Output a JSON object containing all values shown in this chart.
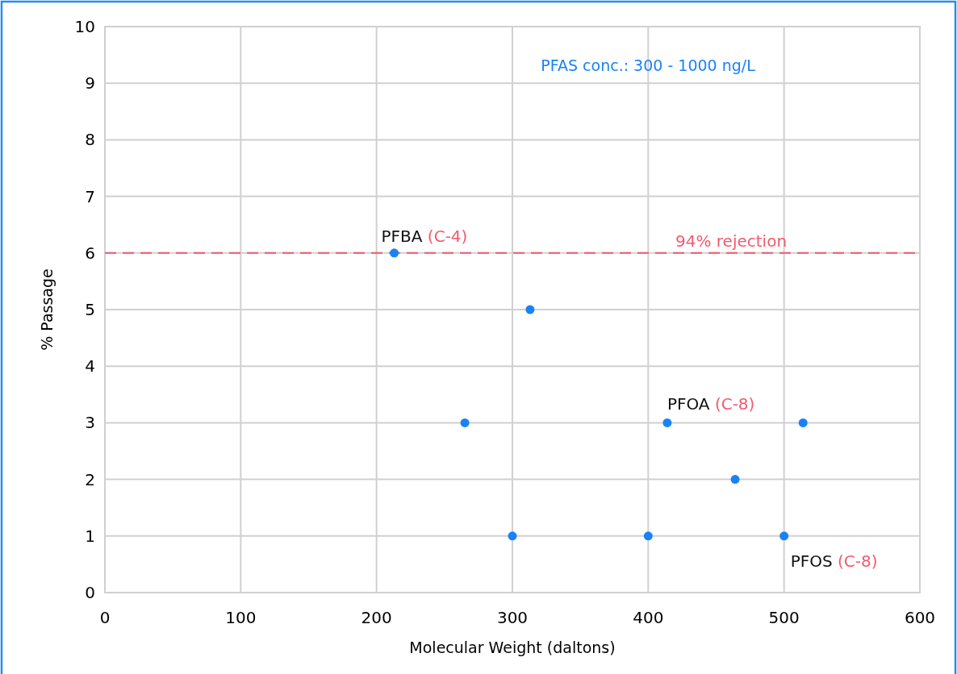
{
  "chart_data": {
    "type": "scatter",
    "xlabel": "Molecular Weight (daltons)",
    "ylabel": "% Passage",
    "x": [
      213,
      313,
      265,
      300,
      400,
      414,
      464,
      500,
      514
    ],
    "values": [
      6,
      5,
      3,
      1,
      1,
      3,
      2,
      1,
      3
    ],
    "color": "#1a82f7",
    "marker": "circle",
    "xlim": [
      0,
      600
    ],
    "xticks": [
      0,
      100,
      200,
      300,
      400,
      500,
      600
    ],
    "ylim": [
      0,
      10
    ],
    "yticks": [
      0,
      1,
      2,
      3,
      4,
      5,
      6,
      7,
      8,
      9,
      10
    ],
    "grid": true,
    "ref_lines": [
      {
        "axis": "y",
        "value": 6,
        "label": "94% rejection",
        "color": "#f25a6e",
        "line_style": "dashed"
      }
    ],
    "annotations": [
      "PFAS conc.: 300 - 1000 ng/L",
      {
        "text": "PFBA (C-4)",
        "x": 213,
        "y": 6
      },
      {
        "text": "PFOA (C-8)",
        "x": 414,
        "y": 3
      },
      {
        "text": "PFOS (C-8)",
        "x": 500,
        "y": 1
      }
    ]
  }
}
